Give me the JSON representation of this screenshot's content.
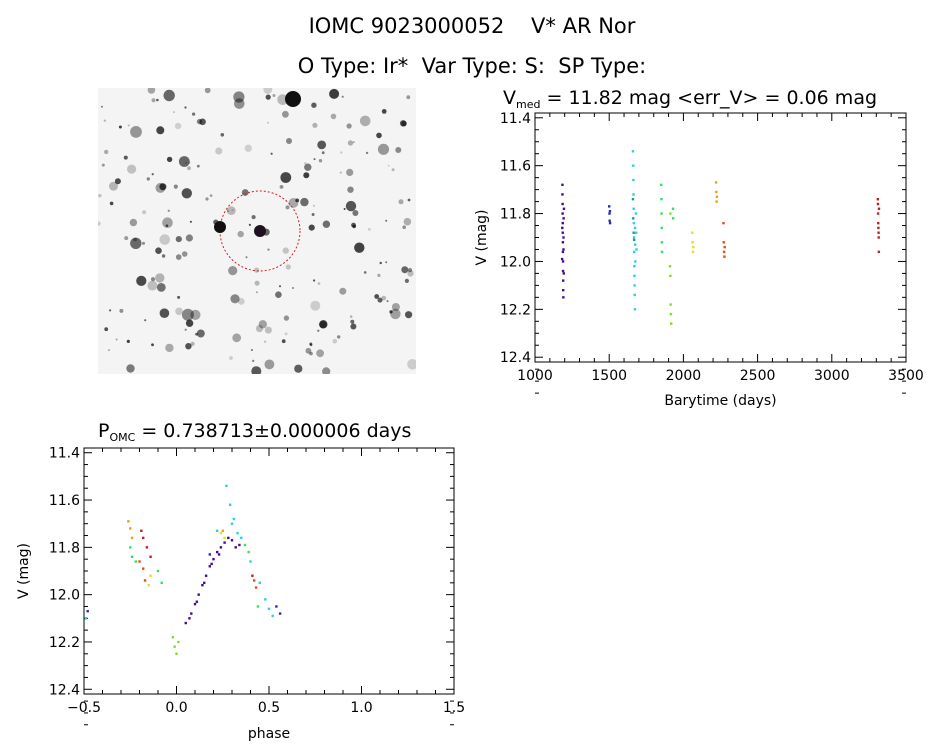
{
  "header": {
    "line1": "IOMC 9023000052    V* AR Nor",
    "line2": "O Type: Ir*  Var Type: S:  SP Type:"
  },
  "image_panel": {
    "marker_color": "#d02020",
    "background": "#f4f4f4"
  },
  "chart_data": [
    {
      "type": "scatter",
      "title_main": "V",
      "title_sub": "med",
      "title_rest": " = 11.82 mag <err_V> = 0.06 mag",
      "xlabel": "Barytime (days)",
      "ylabel": "V (mag)",
      "xlim": [
        1000,
        3500
      ],
      "ylim": [
        12.42,
        11.38
      ],
      "xticks": [
        "1000",
        "1500",
        "2000",
        "2500",
        "3000",
        "3500"
      ],
      "yticks": [
        "11.4",
        "11.6",
        "11.8",
        "12.0",
        "12.2",
        "12.4"
      ],
      "series": [
        {
          "color": "#4b0a8a",
          "values": [
            [
              1185,
              11.68
            ],
            [
              1185,
              11.72
            ],
            [
              1186,
              11.76
            ],
            [
              1186,
              11.8
            ],
            [
              1187,
              11.84
            ],
            [
              1187,
              11.88
            ],
            [
              1188,
              11.92
            ],
            [
              1188,
              11.96
            ],
            [
              1189,
              12.0
            ],
            [
              1189,
              12.04
            ],
            [
              1190,
              12.08
            ],
            [
              1190,
              12.12
            ],
            [
              1191,
              12.15
            ],
            [
              1192,
              11.9
            ],
            [
              1192,
              11.95
            ],
            [
              1193,
              11.82
            ],
            [
              1184,
              11.86
            ],
            [
              1194,
              12.05
            ],
            [
              1195,
              11.78
            ],
            [
              1183,
              11.99
            ]
          ]
        },
        {
          "color": "#2030b0",
          "values": [
            [
              1500,
              11.77
            ],
            [
              1502,
              11.8
            ],
            [
              1503,
              11.83
            ],
            [
              1505,
              11.79
            ],
            [
              1506,
              11.84
            ]
          ]
        },
        {
          "color": "#2ad0e0",
          "values": [
            [
              1660,
              11.54
            ],
            [
              1662,
              11.6
            ],
            [
              1663,
              11.66
            ],
            [
              1664,
              11.72
            ],
            [
              1665,
              11.78
            ],
            [
              1666,
              11.84
            ],
            [
              1667,
              11.9
            ],
            [
              1668,
              11.96
            ],
            [
              1669,
              12.02
            ],
            [
              1670,
              12.06
            ],
            [
              1671,
              12.1
            ],
            [
              1672,
              12.14
            ],
            [
              1673,
              12.2
            ],
            [
              1674,
              11.86
            ],
            [
              1675,
              11.93
            ],
            [
              1676,
              12.0
            ],
            [
              1680,
              11.8
            ],
            [
              1682,
              11.88
            ],
            [
              1684,
              11.95
            ]
          ]
        },
        {
          "color": "#1aa070",
          "values": [
            [
              1660,
              11.74
            ],
            [
              1662,
              11.82
            ],
            [
              1665,
              11.88
            ],
            [
              1668,
              11.91
            ]
          ]
        },
        {
          "color": "#30e060",
          "values": [
            [
              1850,
              11.68
            ],
            [
              1852,
              11.74
            ],
            [
              1853,
              11.8
            ],
            [
              1854,
              11.86
            ],
            [
              1855,
              11.92
            ],
            [
              1856,
              11.96
            ],
            [
              1930,
              11.78
            ],
            [
              1931,
              11.82
            ]
          ]
        },
        {
          "color": "#80e020",
          "values": [
            [
              1910,
              12.02
            ],
            [
              1912,
              12.06
            ],
            [
              1914,
              12.18
            ],
            [
              1916,
              12.22
            ],
            [
              1918,
              12.26
            ],
            [
              1912,
              11.8
            ]
          ]
        },
        {
          "color": "#e0e020",
          "values": [
            [
              2060,
              11.88
            ],
            [
              2062,
              11.92
            ],
            [
              2064,
              11.96
            ],
            [
              2066,
              11.94
            ]
          ]
        },
        {
          "color": "#f0a000",
          "values": [
            [
              2220,
              11.67
            ],
            [
              2222,
              11.71
            ],
            [
              2224,
              11.75
            ],
            [
              2226,
              11.73
            ]
          ]
        },
        {
          "color": "#e05010",
          "values": [
            [
              2270,
              11.84
            ],
            [
              2272,
              11.92
            ],
            [
              2274,
              11.96
            ],
            [
              2276,
              11.98
            ],
            [
              2278,
              11.94
            ]
          ]
        },
        {
          "color": "#c02020",
          "values": [
            [
              3310,
              11.74
            ],
            [
              3311,
              11.76
            ],
            [
              3312,
              11.8
            ],
            [
              3313,
              11.84
            ],
            [
              3314,
              11.86
            ],
            [
              3315,
              11.88
            ],
            [
              3316,
              11.9
            ],
            [
              3317,
              11.96
            ],
            [
              3318,
              11.78
            ]
          ]
        }
      ]
    },
    {
      "type": "scatter",
      "title_main": "P",
      "title_sub": "OMC",
      "title_rest": " = 0.738713±0.000006 days",
      "xlabel": "phase",
      "ylabel": "V (mag)",
      "xlim": [
        -0.5,
        1.5
      ],
      "ylim": [
        12.42,
        11.38
      ],
      "xticks": [
        "−0.5",
        "0.0",
        "0.5",
        "1.0",
        "1.5"
      ],
      "yticks": [
        "11.4",
        "11.6",
        "11.8",
        "12.0",
        "12.2",
        "12.4"
      ],
      "series": [
        {
          "color": "#4b0a8a",
          "values": [
            [
              0.05,
              12.12
            ],
            [
              0.08,
              12.08
            ],
            [
              0.1,
              12.04
            ],
            [
              0.12,
              12.0
            ],
            [
              0.14,
              11.96
            ],
            [
              0.16,
              11.92
            ],
            [
              0.18,
              11.88
            ],
            [
              0.2,
              11.85
            ],
            [
              0.22,
              11.82
            ],
            [
              0.24,
              11.8
            ],
            [
              0.26,
              11.78
            ],
            [
              0.28,
              11.76
            ],
            [
              0.3,
              11.77
            ],
            [
              0.32,
              11.8
            ],
            [
              0.34,
              11.79
            ],
            [
              0.07,
              12.1
            ],
            [
              0.11,
              12.03
            ],
            [
              0.15,
              11.95
            ],
            [
              0.19,
              11.87
            ],
            [
              0.23,
              11.83
            ]
          ]
        },
        {
          "color": "#2030b0",
          "values": [
            [
              -0.48,
              12.07
            ],
            [
              0.18,
              11.83
            ],
            [
              0.54,
              12.05
            ],
            [
              0.56,
              12.08
            ]
          ]
        },
        {
          "color": "#2ad0e0",
          "values": [
            [
              0.27,
              11.54
            ],
            [
              0.29,
              11.62
            ],
            [
              0.31,
              11.68
            ],
            [
              0.33,
              11.74
            ],
            [
              0.35,
              11.76
            ],
            [
              0.4,
              11.86
            ],
            [
              0.45,
              11.95
            ],
            [
              0.48,
              12.02
            ],
            [
              0.5,
              12.06
            ],
            [
              0.52,
              12.09
            ],
            [
              0.3,
              11.7
            ],
            [
              -0.49,
              12.1
            ],
            [
              0.22,
              11.73
            ]
          ]
        },
        {
          "color": "#30e060",
          "values": [
            [
              -0.25,
              11.8
            ],
            [
              -0.24,
              11.84
            ],
            [
              -0.22,
              11.86
            ],
            [
              0.37,
              11.79
            ],
            [
              0.39,
              11.82
            ],
            [
              0.44,
              12.05
            ],
            [
              -0.1,
              11.9
            ],
            [
              -0.08,
              11.95
            ]
          ]
        },
        {
          "color": "#80e020",
          "values": [
            [
              -0.02,
              12.18
            ],
            [
              -0.01,
              12.22
            ],
            [
              0.0,
              12.25
            ],
            [
              0.01,
              12.2
            ]
          ]
        },
        {
          "color": "#e0e020",
          "values": [
            [
              0.24,
              11.74
            ],
            [
              0.26,
              11.76
            ],
            [
              -0.15,
              11.96
            ],
            [
              -0.14,
              11.92
            ]
          ]
        },
        {
          "color": "#f0a000",
          "values": [
            [
              -0.26,
              11.69
            ],
            [
              -0.25,
              11.72
            ],
            [
              -0.24,
              11.76
            ],
            [
              0.25,
              11.73
            ]
          ]
        },
        {
          "color": "#e05010",
          "values": [
            [
              -0.2,
              11.86
            ],
            [
              -0.18,
              11.89
            ],
            [
              0.42,
              11.94
            ],
            [
              0.43,
              11.97
            ],
            [
              -0.17,
              11.94
            ]
          ]
        },
        {
          "color": "#c02020",
          "values": [
            [
              -0.19,
              11.73
            ],
            [
              -0.18,
              11.76
            ],
            [
              -0.16,
              11.8
            ],
            [
              -0.14,
              11.84
            ],
            [
              0.41,
              11.92
            ]
          ]
        }
      ]
    }
  ]
}
